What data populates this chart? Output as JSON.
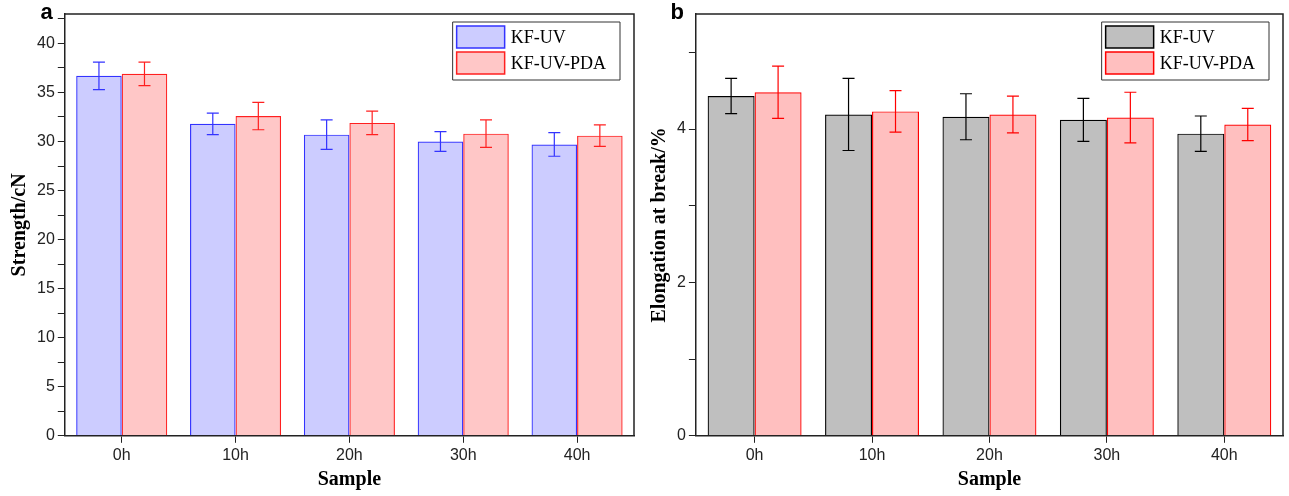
{
  "chart_data": [
    {
      "type": "bar",
      "title": "a",
      "xlabel": "Sample",
      "ylabel": "Strength/cN",
      "categories": [
        "0h",
        "10h",
        "20h",
        "30h",
        "40h"
      ],
      "series": [
        {
          "name": "KF-UV",
          "color": "#3333ff",
          "values": [
            36.7,
            31.8,
            30.7,
            30.0,
            29.7
          ],
          "errors": [
            1.4,
            1.1,
            1.5,
            1.0,
            1.2
          ]
        },
        {
          "name": "KF-UV-PDA",
          "color": "#ff2020",
          "values": [
            36.9,
            32.6,
            31.9,
            30.8,
            30.6
          ],
          "errors": [
            1.2,
            1.4,
            1.2,
            1.4,
            1.1
          ]
        }
      ],
      "ylim": [
        0,
        43
      ],
      "yticks": [
        0,
        {
          "value": 2.5,
          "label": null
        },
        5,
        {
          "value": 7.5,
          "label": null
        },
        10,
        {
          "value": 12.5,
          "label": null
        },
        15,
        {
          "value": 17.5,
          "label": null
        },
        20,
        {
          "value": 22.5,
          "label": null
        },
        25,
        {
          "value": 27.5,
          "label": null
        },
        30,
        {
          "value": 32.5,
          "label": null
        },
        35,
        {
          "value": 37.5,
          "label": null
        },
        40,
        {
          "value": 42.5,
          "label": null
        }
      ],
      "grid": false,
      "legend": "top right"
    },
    {
      "type": "bar",
      "title": "b",
      "xlabel": "Sample",
      "ylabel": "Elongation at break/%",
      "categories": [
        "0h",
        "10h",
        "20h",
        "30h",
        "40h"
      ],
      "series": [
        {
          "name": "KF-UV",
          "color": "#000000",
          "values": [
            4.43,
            4.19,
            4.16,
            4.12,
            3.94
          ],
          "errors": [
            0.23,
            0.47,
            0.3,
            0.28,
            0.23
          ]
        },
        {
          "name": "KF-UV-PDA",
          "color": "#ff0000",
          "values": [
            4.48,
            4.23,
            4.19,
            4.15,
            4.06
          ],
          "errors": [
            0.34,
            0.27,
            0.24,
            0.33,
            0.21
          ]
        }
      ],
      "ylim": [
        0,
        5.5
      ],
      "yticks": [
        0,
        {
          "value": 1,
          "label": null
        },
        2,
        {
          "value": 3,
          "label": null
        },
        4,
        {
          "value": 5,
          "label": null
        }
      ],
      "grid": false,
      "legend": "top right"
    }
  ]
}
